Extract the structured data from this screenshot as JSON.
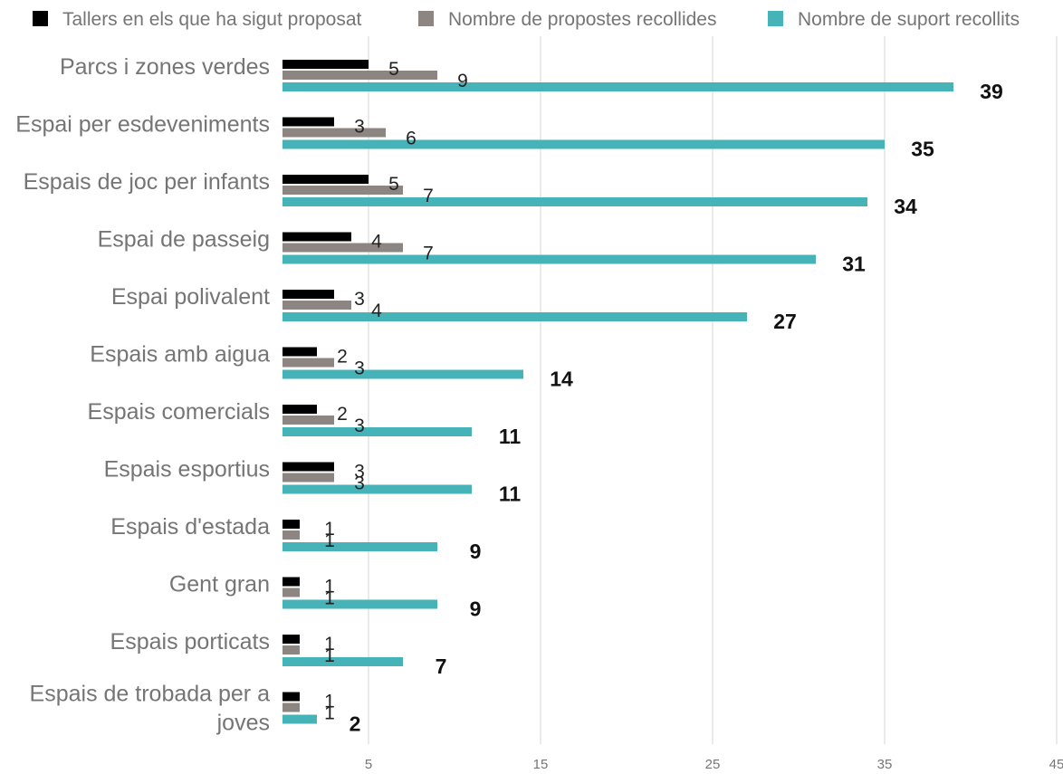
{
  "chart_data": {
    "type": "bar",
    "orientation": "horizontal",
    "title": "",
    "xlabel": "",
    "ylabel": "",
    "categories": [
      "Parcs i zones verdes",
      "Espai per esdeveniments",
      "Espais de joc per infants",
      "Espai de passeig",
      "Espai polivalent",
      "Espais amb aigua",
      "Espais comercials",
      "Espais esportius",
      "Espais d'estada",
      "Gent gran",
      "Espais porticats",
      "Espais de trobada per a joves"
    ],
    "series": [
      {
        "name": "Tallers en els que ha sigut proposat",
        "color": "#000000",
        "values": [
          5,
          3,
          5,
          4,
          3,
          2,
          2,
          3,
          1,
          1,
          1,
          1
        ]
      },
      {
        "name": "Nombre de propostes recollides",
        "color": "#8c8582",
        "values": [
          9,
          6,
          7,
          7,
          4,
          3,
          3,
          3,
          1,
          1,
          1,
          1
        ]
      },
      {
        "name": "Nombre de suport recollits",
        "color": "#45b3b8",
        "values": [
          39,
          35,
          34,
          31,
          27,
          14,
          11,
          11,
          9,
          9,
          7,
          2
        ]
      }
    ],
    "xlim": [
      0,
      45
    ],
    "x_ticks": [
      5,
      15,
      25,
      35,
      45
    ],
    "grid": true,
    "legend_position": "top"
  }
}
